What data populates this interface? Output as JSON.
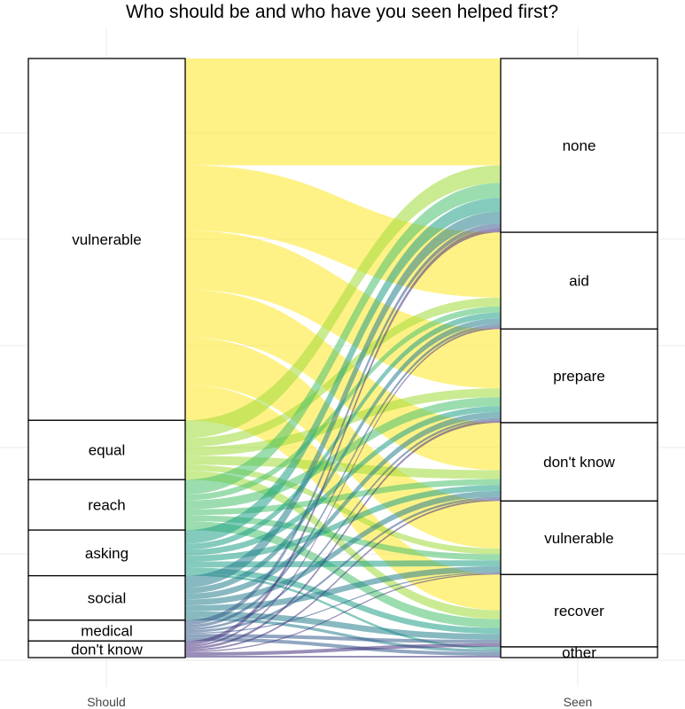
{
  "chart_data": {
    "type": "alluvial",
    "title": "Who should be and who have you seen helped first?",
    "axes": [
      "Should",
      "Seen"
    ],
    "grid": true,
    "left_axis": {
      "label": "Should",
      "strata": [
        {
          "name": "vulnerable",
          "count": 61,
          "color": "#fde725"
        },
        {
          "name": "equal",
          "count": 10,
          "color": "#a0da39"
        },
        {
          "name": "reach",
          "count": 8.5,
          "color": "#4ac16d"
        },
        {
          "name": "asking",
          "count": 7.7,
          "color": "#1fa187"
        },
        {
          "name": "social",
          "count": 7.5,
          "color": "#277f8e"
        },
        {
          "name": "medical",
          "count": 3.5,
          "color": "#365c8d"
        },
        {
          "name": "don't know",
          "count": 2.8,
          "color": "#46327e"
        }
      ]
    },
    "right_axis": {
      "label": "Seen",
      "strata": [
        {
          "name": "none",
          "count": 29.3
        },
        {
          "name": "aid",
          "count": 16.3
        },
        {
          "name": "prepare",
          "count": 15.8
        },
        {
          "name": "don't know",
          "count": 13.2
        },
        {
          "name": "vulnerable",
          "count": 12.4
        },
        {
          "name": "recover",
          "count": 12.2
        },
        {
          "name": "other",
          "count": 1.8
        }
      ]
    },
    "flows": [
      {
        "from": "vulnerable",
        "to": "none",
        "value": 18
      },
      {
        "from": "vulnerable",
        "to": "aid",
        "value": 11
      },
      {
        "from": "vulnerable",
        "to": "prepare",
        "value": 10
      },
      {
        "from": "vulnerable",
        "to": "don't know",
        "value": 8
      },
      {
        "from": "vulnerable",
        "to": "vulnerable",
        "value": 8
      },
      {
        "from": "vulnerable",
        "to": "recover",
        "value": 6
      },
      {
        "from": "equal",
        "to": "none",
        "value": 3
      },
      {
        "from": "equal",
        "to": "aid",
        "value": 1.5
      },
      {
        "from": "equal",
        "to": "prepare",
        "value": 1.5
      },
      {
        "from": "equal",
        "to": "don't know",
        "value": 1.5
      },
      {
        "from": "equal",
        "to": "vulnerable",
        "value": 1
      },
      {
        "from": "equal",
        "to": "recover",
        "value": 1.5
      },
      {
        "from": "reach",
        "to": "none",
        "value": 2.5
      },
      {
        "from": "reach",
        "to": "aid",
        "value": 1
      },
      {
        "from": "reach",
        "to": "prepare",
        "value": 1.5
      },
      {
        "from": "reach",
        "to": "don't know",
        "value": 1
      },
      {
        "from": "reach",
        "to": "vulnerable",
        "value": 1
      },
      {
        "from": "reach",
        "to": "recover",
        "value": 1.5
      },
      {
        "from": "asking",
        "to": "none",
        "value": 2.3
      },
      {
        "from": "asking",
        "to": "aid",
        "value": 1
      },
      {
        "from": "asking",
        "to": "prepare",
        "value": 1
      },
      {
        "from": "asking",
        "to": "don't know",
        "value": 1
      },
      {
        "from": "asking",
        "to": "vulnerable",
        "value": 1
      },
      {
        "from": "asking",
        "to": "recover",
        "value": 1
      },
      {
        "from": "asking",
        "to": "other",
        "value": 0.4
      },
      {
        "from": "social",
        "to": "none",
        "value": 2
      },
      {
        "from": "social",
        "to": "aid",
        "value": 1
      },
      {
        "from": "social",
        "to": "prepare",
        "value": 1
      },
      {
        "from": "social",
        "to": "don't know",
        "value": 1
      },
      {
        "from": "social",
        "to": "vulnerable",
        "value": 1
      },
      {
        "from": "social",
        "to": "recover",
        "value": 1
      },
      {
        "from": "social",
        "to": "other",
        "value": 0.5
      },
      {
        "from": "medical",
        "to": "none",
        "value": 0.8
      },
      {
        "from": "medical",
        "to": "aid",
        "value": 0.5
      },
      {
        "from": "medical",
        "to": "prepare",
        "value": 0.4
      },
      {
        "from": "medical",
        "to": "don't know",
        "value": 0.4
      },
      {
        "from": "medical",
        "to": "vulnerable",
        "value": 0.2
      },
      {
        "from": "medical",
        "to": "recover",
        "value": 0.6
      },
      {
        "from": "medical",
        "to": "other",
        "value": 0.6
      },
      {
        "from": "don't know",
        "to": "none",
        "value": 0.7
      },
      {
        "from": "don't know",
        "to": "aid",
        "value": 0.3
      },
      {
        "from": "don't know",
        "to": "prepare",
        "value": 0.4
      },
      {
        "from": "don't know",
        "to": "don't know",
        "value": 0.3
      },
      {
        "from": "don't know",
        "to": "vulnerable",
        "value": 0.2
      },
      {
        "from": "don't know",
        "to": "recover",
        "value": 0.6
      },
      {
        "from": "don't know",
        "to": "other",
        "value": 0.3
      }
    ]
  }
}
